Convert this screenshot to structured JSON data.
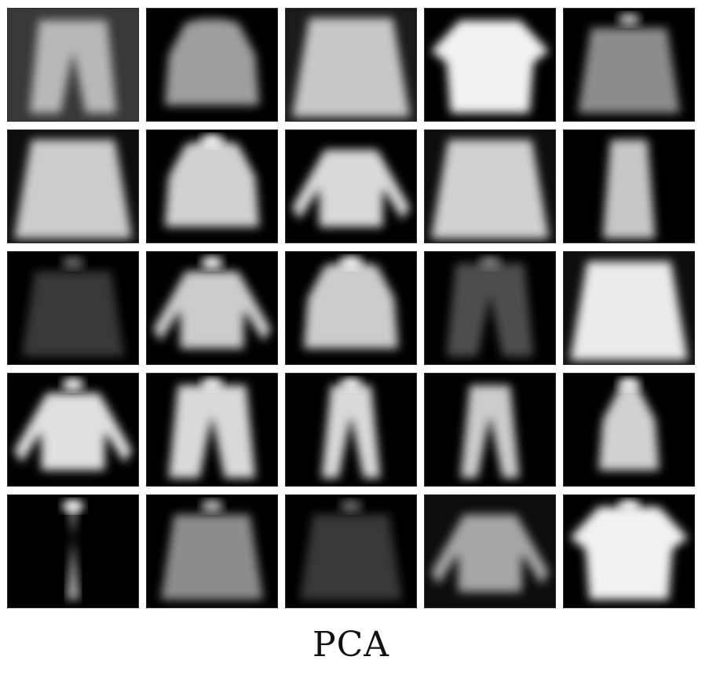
{
  "caption": "PCA",
  "tiles": [
    {
      "kind": "trousers",
      "b": 0.72,
      "bg": 0.22
    },
    {
      "kind": "pullover",
      "b": 0.62,
      "bg": 0.0
    },
    {
      "kind": "coat",
      "b": 0.78,
      "bg": 0.1
    },
    {
      "kind": "tshirt",
      "b": 0.95,
      "bg": 0.0
    },
    {
      "kind": "bag",
      "b": 0.55,
      "bg": 0.0,
      "collar": true
    },
    {
      "kind": "coat",
      "b": 0.8,
      "bg": 0.05
    },
    {
      "kind": "pullover",
      "b": 0.82,
      "bg": 0.0,
      "collar": true
    },
    {
      "kind": "longsleeve",
      "b": 0.85,
      "bg": 0.0
    },
    {
      "kind": "coat",
      "b": 0.82,
      "bg": 0.05
    },
    {
      "kind": "dress",
      "b": 0.78,
      "bg": 0.0
    },
    {
      "kind": "bag",
      "b": 0.22,
      "bg": 0.0,
      "collar": true
    },
    {
      "kind": "longsleeve",
      "b": 0.8,
      "bg": 0.0,
      "collar": true
    },
    {
      "kind": "pullover",
      "b": 0.8,
      "bg": 0.0,
      "collar": true
    },
    {
      "kind": "trousers",
      "b": 0.3,
      "bg": 0.0,
      "collar": true
    },
    {
      "kind": "coat",
      "b": 0.92,
      "bg": 0.05
    },
    {
      "kind": "longsleeve",
      "b": 0.88,
      "bg": 0.0,
      "collar": true
    },
    {
      "kind": "trousers",
      "b": 0.85,
      "bg": 0.0,
      "collar": true
    },
    {
      "kind": "trousers",
      "b": 0.85,
      "bg": 0.0,
      "collar": true,
      "narrow": true
    },
    {
      "kind": "trousers",
      "b": 0.8,
      "bg": 0.0,
      "narrow": true
    },
    {
      "kind": "pullover",
      "b": 0.82,
      "bg": 0.0,
      "collar": true,
      "small": true
    },
    {
      "kind": "trousers",
      "b": 0.8,
      "bg": 0.0,
      "collar": true,
      "narrow": true,
      "thin": true
    },
    {
      "kind": "bag",
      "b": 0.55,
      "bg": 0.0,
      "collar": true
    },
    {
      "kind": "bag",
      "b": 0.22,
      "bg": 0.0,
      "collar": true
    },
    {
      "kind": "longsleeve",
      "b": 0.65,
      "bg": 0.05
    },
    {
      "kind": "tshirt",
      "b": 0.95,
      "bg": 0.0,
      "collar": true
    }
  ]
}
